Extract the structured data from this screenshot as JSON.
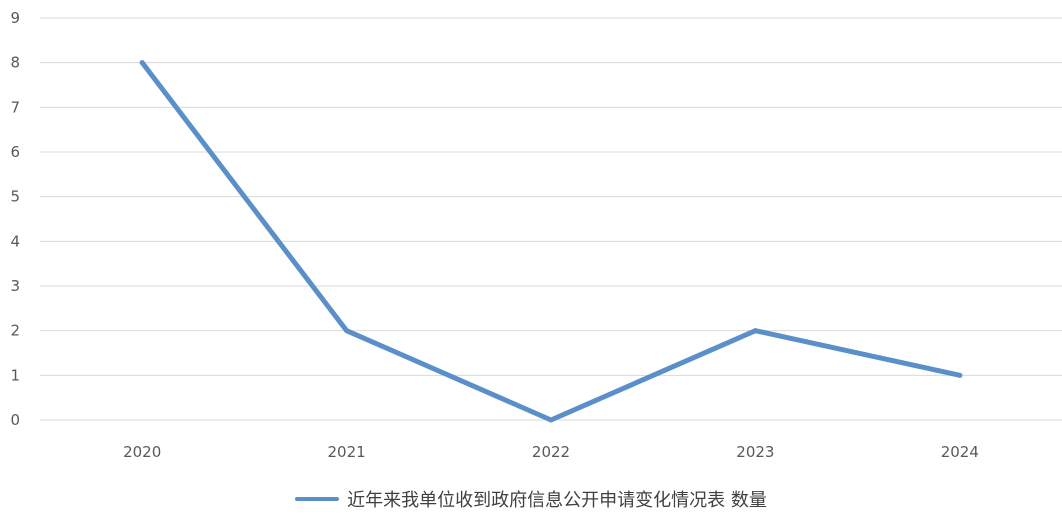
{
  "chart_data": {
    "type": "line",
    "title": "",
    "xlabel": "",
    "ylabel": "",
    "categories": [
      "2020",
      "2021",
      "2022",
      "2023",
      "2024"
    ],
    "series": [
      {
        "name": "近年来我单位收到政府信息公开申请变化情况表 数量",
        "values": [
          8,
          2,
          0,
          2,
          1
        ]
      }
    ],
    "ylim": [
      0,
      9
    ],
    "yticks": [
      "0",
      "1",
      "2",
      "3",
      "4",
      "5",
      "6",
      "7",
      "8",
      "9"
    ],
    "grid": true,
    "legend_position": "bottom"
  },
  "colors": {
    "series": "#5b8fc9",
    "grid": "#d9d9d9",
    "axis": "#d9d9d9"
  }
}
